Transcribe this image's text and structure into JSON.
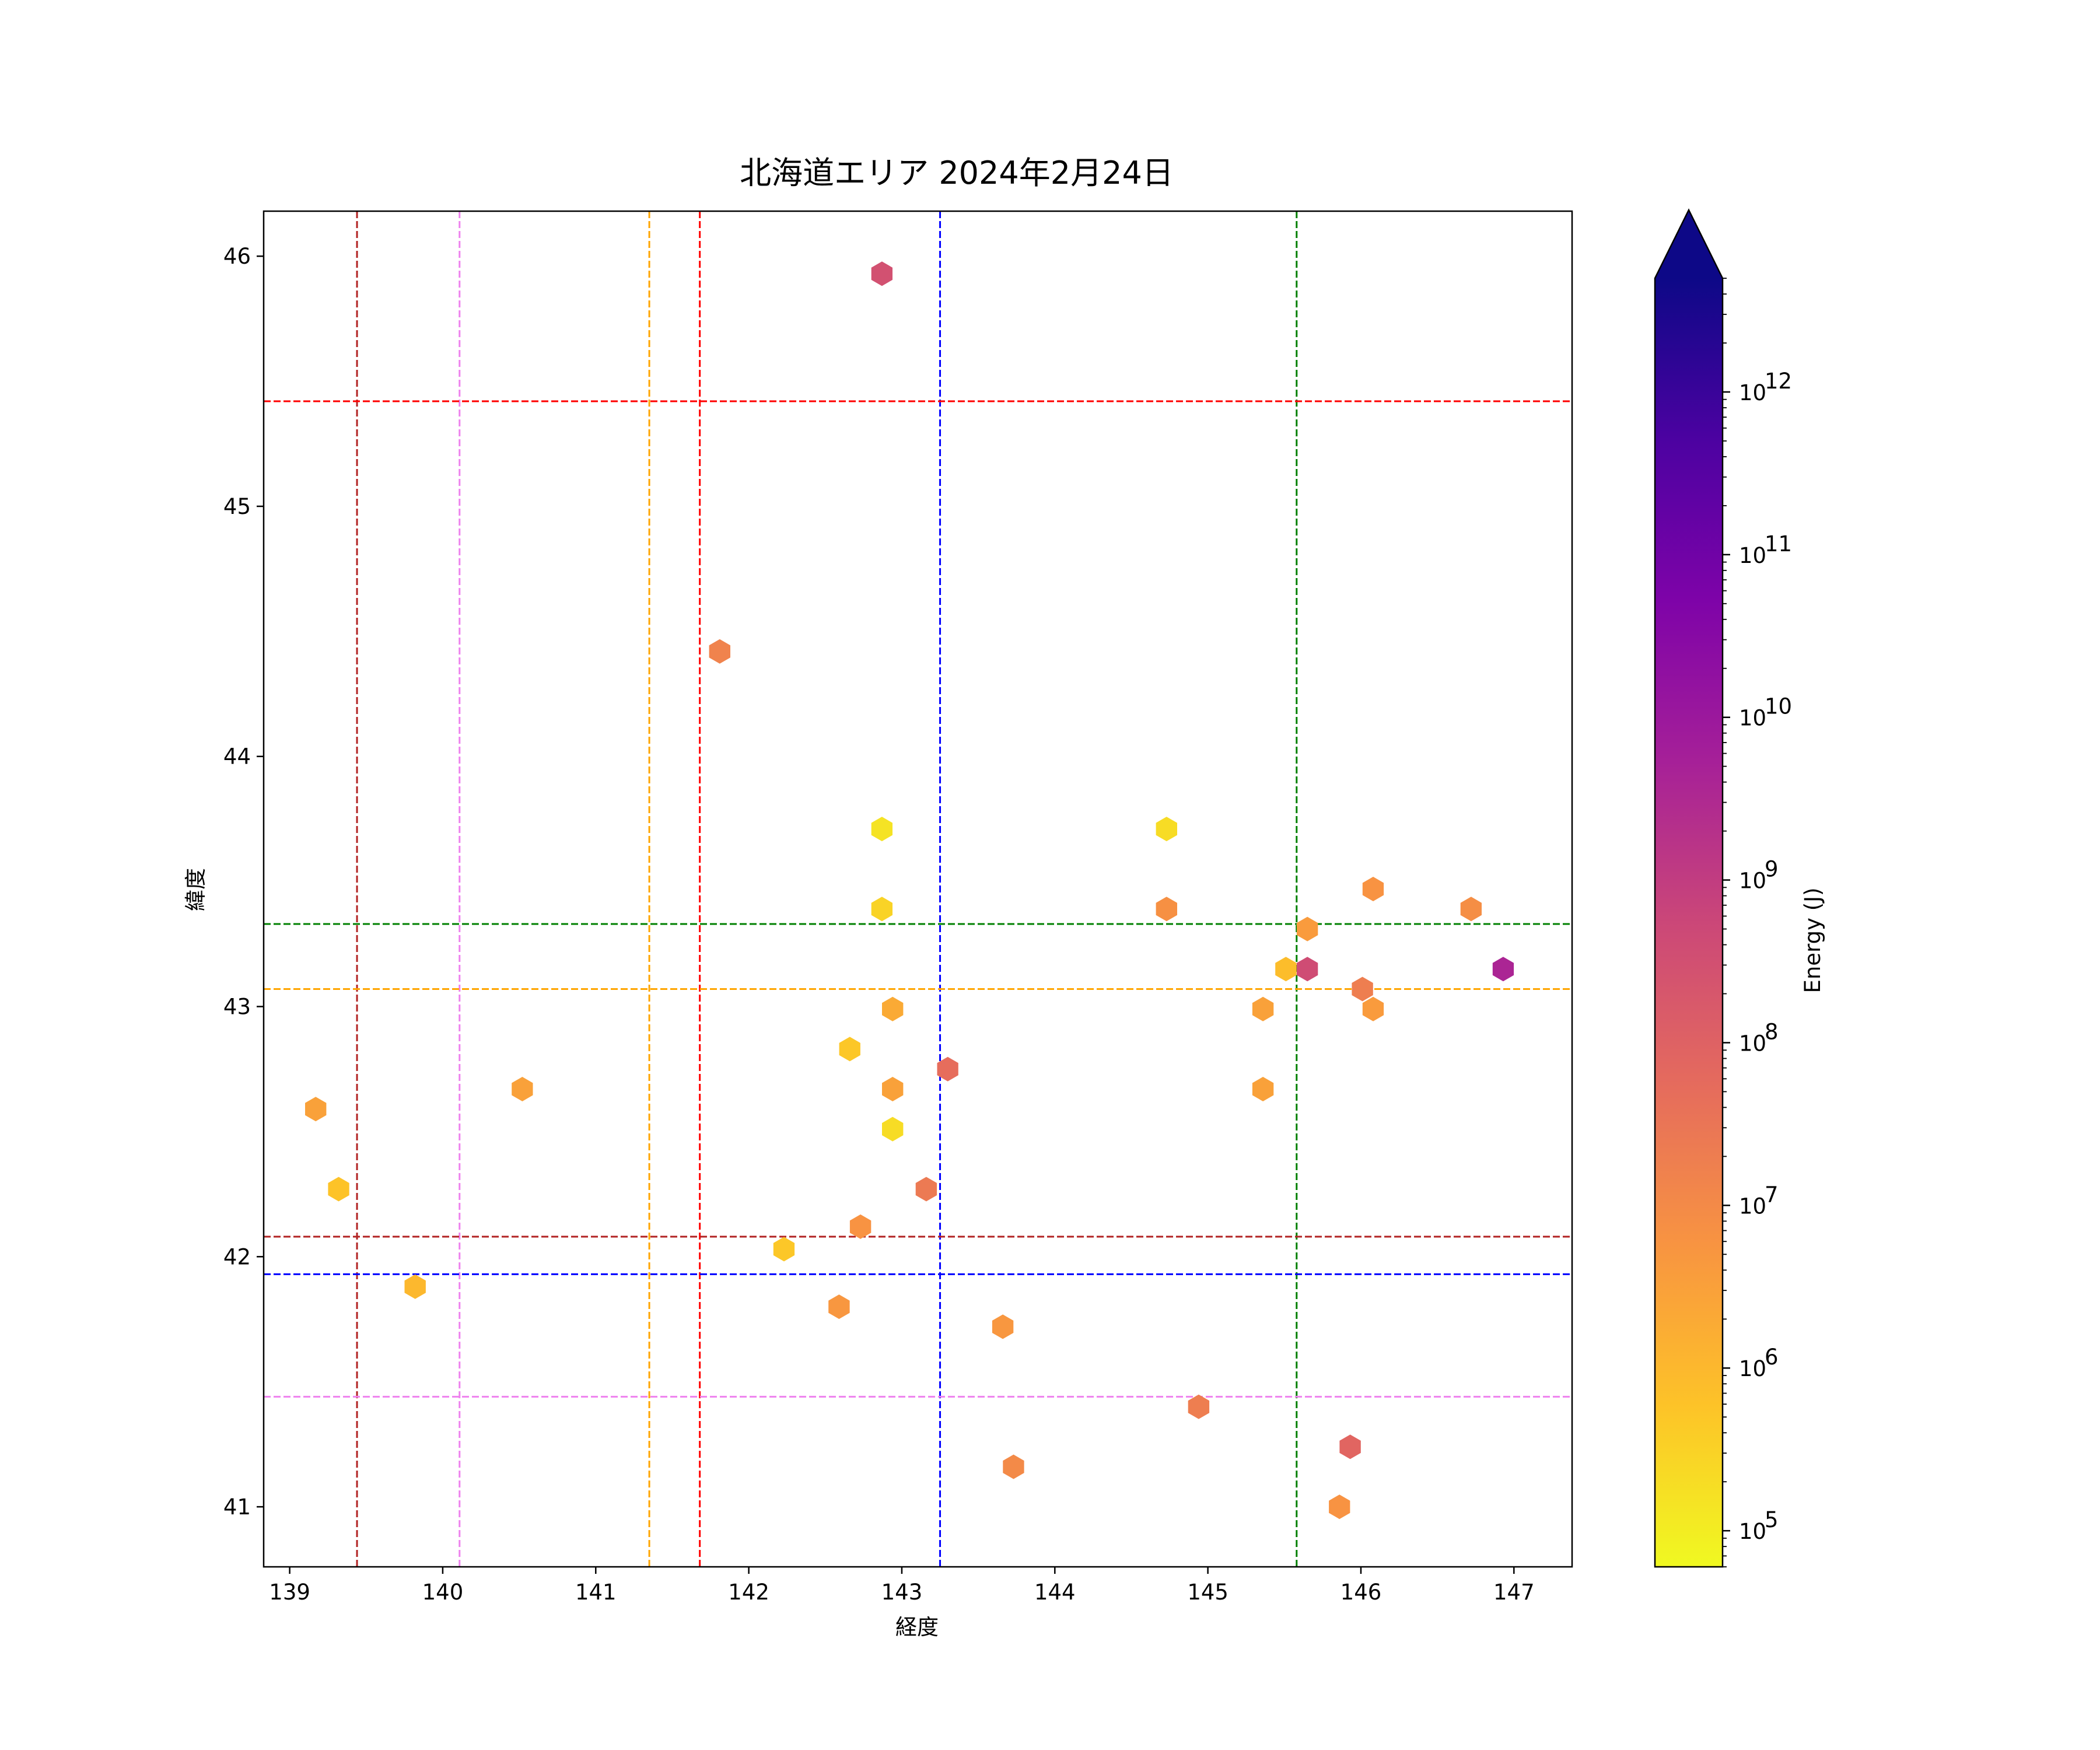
{
  "chart_data": {
    "type": "scatter",
    "title": "北海道エリア 2024年2月24日",
    "xlabel": "経度",
    "ylabel": "緯度",
    "xlim": [
      138.83,
      147.38
    ],
    "ylim": [
      40.76,
      46.18
    ],
    "xticks": [
      "139",
      "140",
      "141",
      "142",
      "143",
      "144",
      "145",
      "146",
      "147"
    ],
    "yticks": [
      "41",
      "42",
      "43",
      "44",
      "45",
      "46"
    ],
    "marker": "hexagon",
    "grid": false,
    "colorbar": {
      "label": "Energy (J)",
      "scale": "log",
      "colormap": "plasma_r",
      "range": [
        60000,
        5000000000000
      ],
      "extend": "max",
      "ticks": [
        {
          "base": "10",
          "exp": "5"
        },
        {
          "base": "10",
          "exp": "6"
        },
        {
          "base": "10",
          "exp": "7"
        },
        {
          "base": "10",
          "exp": "8"
        },
        {
          "base": "10",
          "exp": "9"
        },
        {
          "base": "10",
          "exp": "10"
        },
        {
          "base": "10",
          "exp": "11"
        },
        {
          "base": "10",
          "exp": "12"
        }
      ]
    },
    "reference_lines": {
      "vertical": [
        {
          "x": 139.44,
          "color": "#b22222"
        },
        {
          "x": 140.11,
          "color": "#ee82ee"
        },
        {
          "x": 141.35,
          "color": "#ffa500"
        },
        {
          "x": 141.68,
          "color": "#ff0000"
        },
        {
          "x": 143.25,
          "color": "#0000ff"
        },
        {
          "x": 145.58,
          "color": "#008000"
        }
      ],
      "horizontal": [
        {
          "y": 45.42,
          "color": "#ff0000"
        },
        {
          "y": 43.33,
          "color": "#008000"
        },
        {
          "y": 43.07,
          "color": "#ffa500"
        },
        {
          "y": 42.08,
          "color": "#b22222"
        },
        {
          "y": 41.93,
          "color": "#0000ff"
        },
        {
          "y": 41.44,
          "color": "#ee82ee"
        }
      ]
    },
    "points": [
      {
        "x": 142.87,
        "y": 45.93,
        "energy": 300000000
      },
      {
        "x": 141.81,
        "y": 44.42,
        "energy": 15000000
      },
      {
        "x": 142.87,
        "y": 43.71,
        "energy": 150000
      },
      {
        "x": 144.73,
        "y": 43.71,
        "energy": 200000
      },
      {
        "x": 142.87,
        "y": 43.39,
        "energy": 300000
      },
      {
        "x": 144.73,
        "y": 43.39,
        "energy": 7000000
      },
      {
        "x": 146.08,
        "y": 43.47,
        "energy": 6000000
      },
      {
        "x": 146.72,
        "y": 43.39,
        "energy": 8000000
      },
      {
        "x": 145.65,
        "y": 43.31,
        "energy": 4000000
      },
      {
        "x": 145.51,
        "y": 43.15,
        "energy": 800000
      },
      {
        "x": 145.65,
        "y": 43.15,
        "energy": 400000000
      },
      {
        "x": 146.93,
        "y": 43.15,
        "energy": 4000000000
      },
      {
        "x": 146.01,
        "y": 43.07,
        "energy": 20000000
      },
      {
        "x": 142.94,
        "y": 42.99,
        "energy": 2000000
      },
      {
        "x": 145.36,
        "y": 42.99,
        "energy": 3000000
      },
      {
        "x": 146.08,
        "y": 42.99,
        "energy": 4000000
      },
      {
        "x": 142.66,
        "y": 42.83,
        "energy": 500000
      },
      {
        "x": 143.3,
        "y": 42.75,
        "energy": 50000000
      },
      {
        "x": 140.52,
        "y": 42.67,
        "energy": 3000000
      },
      {
        "x": 142.94,
        "y": 42.67,
        "energy": 3000000
      },
      {
        "x": 145.36,
        "y": 42.67,
        "energy": 3000000
      },
      {
        "x": 139.17,
        "y": 42.59,
        "energy": 3000000
      },
      {
        "x": 142.94,
        "y": 42.51,
        "energy": 200000
      },
      {
        "x": 139.32,
        "y": 42.27,
        "energy": 600000
      },
      {
        "x": 143.16,
        "y": 42.27,
        "energy": 25000000
      },
      {
        "x": 142.73,
        "y": 42.12,
        "energy": 6000000
      },
      {
        "x": 142.23,
        "y": 42.03,
        "energy": 500000
      },
      {
        "x": 139.82,
        "y": 41.88,
        "energy": 1000000
      },
      {
        "x": 142.59,
        "y": 41.8,
        "energy": 5000000
      },
      {
        "x": 143.66,
        "y": 41.72,
        "energy": 5000000
      },
      {
        "x": 144.94,
        "y": 41.4,
        "energy": 20000000
      },
      {
        "x": 145.93,
        "y": 41.24,
        "energy": 80000000
      },
      {
        "x": 143.73,
        "y": 41.16,
        "energy": 10000000
      },
      {
        "x": 145.86,
        "y": 41.0,
        "energy": 6000000
      }
    ]
  }
}
